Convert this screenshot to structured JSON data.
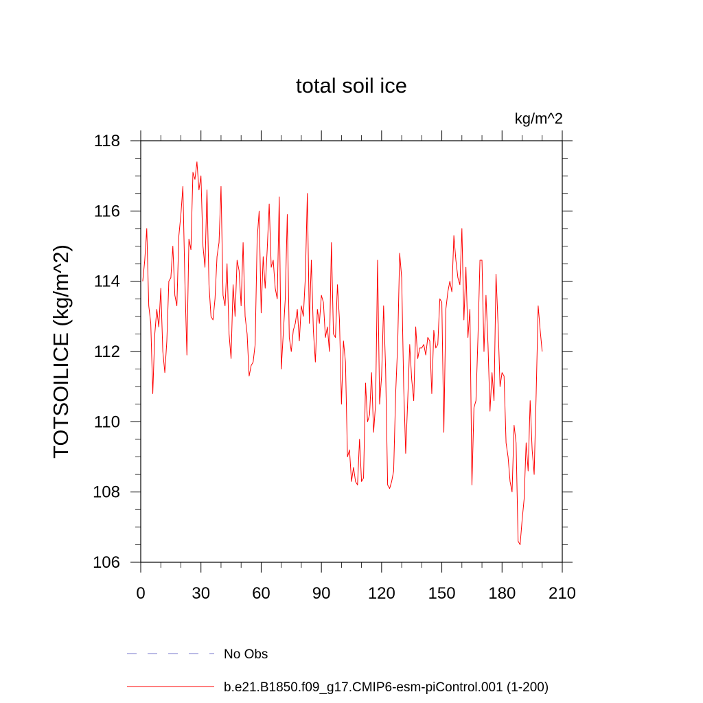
{
  "chart_data": {
    "type": "line",
    "title": "total soil ice",
    "units": "kg/m^2",
    "ylabel": "TOTSOILICE  (kg/m^2)",
    "xlabel": "",
    "xlim": [
      0,
      210
    ],
    "ylim": [
      106,
      118
    ],
    "xticks": [
      0,
      30,
      60,
      90,
      120,
      150,
      180,
      210
    ],
    "yticks": [
      106,
      108,
      110,
      112,
      114,
      116,
      118
    ],
    "xtick_labels": [
      "0",
      "30",
      "60",
      "90",
      "120",
      "150",
      "180",
      "210"
    ],
    "ytick_labels": [
      "106",
      "108",
      "110",
      "112",
      "114",
      "116",
      "118"
    ],
    "grid": false,
    "legend_position": "bottom",
    "series": [
      {
        "name": "No Obs",
        "color": "#7777cc",
        "style": "dashed",
        "values": []
      },
      {
        "name": "b.e21.B1850.f09_g17.CMIP6-esm-piControl.001 (1-200)",
        "color": "#ff0000",
        "style": "solid",
        "x": [
          1,
          2,
          3,
          4,
          5,
          6,
          7,
          8,
          9,
          10,
          11,
          12,
          13,
          14,
          15,
          16,
          17,
          18,
          19,
          20,
          21,
          22,
          23,
          24,
          25,
          26,
          27,
          28,
          29,
          30,
          31,
          32,
          33,
          34,
          35,
          36,
          37,
          38,
          39,
          40,
          41,
          42,
          43,
          44,
          45,
          46,
          47,
          48,
          49,
          50,
          51,
          52,
          53,
          54,
          55,
          56,
          57,
          58,
          59,
          60,
          61,
          62,
          63,
          64,
          65,
          66,
          67,
          68,
          69,
          70,
          71,
          72,
          73,
          74,
          75,
          76,
          77,
          78,
          79,
          80,
          81,
          82,
          83,
          84,
          85,
          86,
          87,
          88,
          89,
          90,
          91,
          92,
          93,
          94,
          95,
          96,
          97,
          98,
          99,
          100,
          101,
          102,
          103,
          104,
          105,
          106,
          107,
          108,
          109,
          110,
          111,
          112,
          113,
          114,
          115,
          116,
          117,
          118,
          119,
          120,
          121,
          122,
          123,
          124,
          125,
          126,
          127,
          128,
          129,
          130,
          131,
          132,
          133,
          134,
          135,
          136,
          137,
          138,
          139,
          140,
          141,
          142,
          143,
          144,
          145,
          146,
          147,
          148,
          149,
          150,
          151,
          152,
          153,
          154,
          155,
          156,
          157,
          158,
          159,
          160,
          161,
          162,
          163,
          164,
          165,
          166,
          167,
          168,
          169,
          170,
          171,
          172,
          173,
          174,
          175,
          176,
          177,
          178,
          179,
          180,
          181,
          182,
          183,
          184,
          185,
          186,
          187,
          188,
          189,
          190,
          191,
          192,
          193,
          194,
          195,
          196,
          197,
          198,
          199,
          200
        ],
        "values": [
          114.0,
          114.6,
          115.5,
          113.3,
          112.8,
          110.8,
          112.5,
          113.2,
          112.7,
          113.8,
          112.0,
          111.4,
          112.3,
          114.0,
          114.1,
          115.0,
          113.6,
          113.3,
          115.3,
          115.9,
          116.7,
          114.0,
          111.9,
          115.2,
          114.9,
          117.1,
          116.9,
          117.4,
          116.6,
          117.0,
          115.0,
          114.4,
          116.6,
          113.9,
          113.0,
          112.9,
          113.5,
          114.7,
          115.1,
          116.7,
          113.6,
          113.3,
          114.5,
          112.5,
          111.8,
          113.9,
          113.0,
          114.6,
          114.3,
          113.3,
          115.1,
          113.0,
          112.5,
          111.3,
          111.6,
          111.7,
          112.2,
          115.2,
          116.0,
          113.1,
          114.7,
          113.8,
          114.9,
          116.2,
          114.4,
          114.6,
          113.8,
          113.5,
          116.4,
          111.5,
          112.5,
          113.5,
          115.9,
          112.4,
          112.0,
          112.6,
          112.8,
          113.2,
          112.3,
          113.3,
          113.0,
          114.1,
          116.5,
          112.8,
          114.6,
          112.6,
          111.7,
          113.2,
          112.8,
          113.6,
          113.4,
          112.4,
          112.7,
          112.0,
          115.1,
          112.5,
          112.4,
          113.9,
          112.9,
          110.5,
          112.3,
          111.7,
          109.0,
          109.2,
          108.3,
          108.7,
          108.3,
          108.2,
          109.5,
          108.3,
          108.4,
          111.1,
          110.0,
          110.2,
          111.4,
          109.7,
          110.5,
          114.6,
          110.5,
          111.3,
          113.3,
          111.5,
          108.2,
          108.1,
          108.3,
          108.6,
          110.8,
          112.2,
          114.8,
          114.1,
          111.0,
          109.1,
          110.6,
          112.2,
          111.2,
          110.6,
          112.7,
          111.8,
          112.1,
          112.1,
          112.2,
          111.9,
          112.4,
          112.3,
          110.8,
          112.6,
          112.1,
          112.2,
          113.5,
          113.4,
          109.7,
          113.2,
          113.7,
          114.0,
          113.7,
          115.3,
          114.6,
          114.1,
          113.9,
          115.5,
          112.9,
          114.4,
          112.4,
          113.2,
          108.2,
          110.4,
          110.6,
          112.4,
          114.6,
          114.6,
          112.0,
          113.6,
          112.2,
          110.3,
          111.4,
          110.6,
          114.2,
          112.8,
          111.0,
          111.4,
          111.3,
          109.4,
          109.0,
          108.3,
          108.0,
          109.9,
          109.4,
          106.6,
          106.5,
          107.2,
          107.8,
          109.4,
          108.6,
          110.6,
          109.2,
          108.5,
          110.8,
          113.3,
          112.6,
          112.0
        ]
      }
    ]
  }
}
